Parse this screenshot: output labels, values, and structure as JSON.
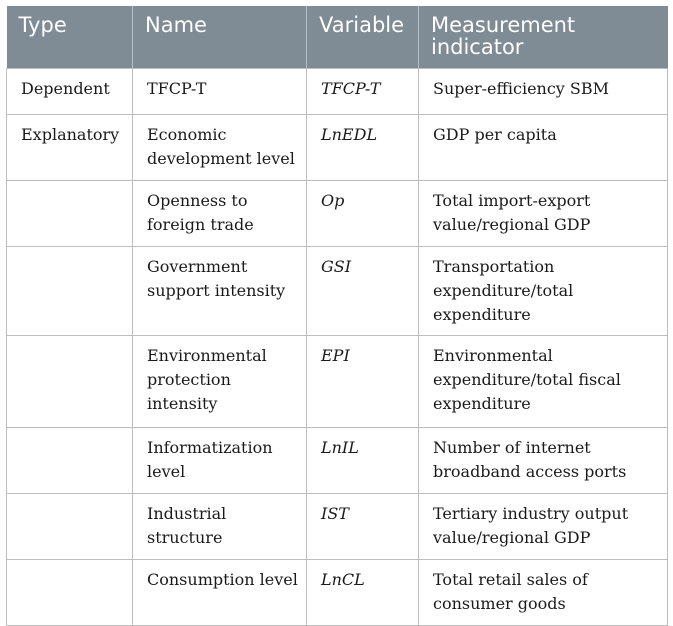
{
  "table": {
    "headers": [
      "Type",
      "Name",
      "Variable",
      "Measurement indicator"
    ],
    "rows": [
      {
        "type": "Dependent",
        "name": "TFCP-T",
        "variable": "TFCP-T",
        "indicator": "Super-efficiency SBM"
      },
      {
        "type": "Explanatory",
        "name": "Economic development level",
        "variable": "LnEDL",
        "indicator": "GDP per capita"
      },
      {
        "type": "",
        "name": "Openness to foreign trade",
        "variable": "Op",
        "indicator": "Total import-export value/regional GDP"
      },
      {
        "type": "",
        "name": "Government support intensity",
        "variable": "GSI",
        "indicator": "Transportation expenditure/total expenditure"
      },
      {
        "type": "",
        "name": "Environmental protection intensity",
        "variable": "EPI",
        "indicator": "Environmental expenditure/total fiscal expenditure"
      },
      {
        "type": "",
        "name": "Informatization level",
        "variable": "LnIL",
        "indicator": "Number of internet broadband access ports"
      },
      {
        "type": "",
        "name": "Industrial structure",
        "variable": "IST",
        "indicator": "Tertiary industry output value/regional GDP"
      },
      {
        "type": "",
        "name": "Consumption level",
        "variable": "LnCL",
        "indicator": "Total retail sales of consumer goods"
      }
    ]
  }
}
